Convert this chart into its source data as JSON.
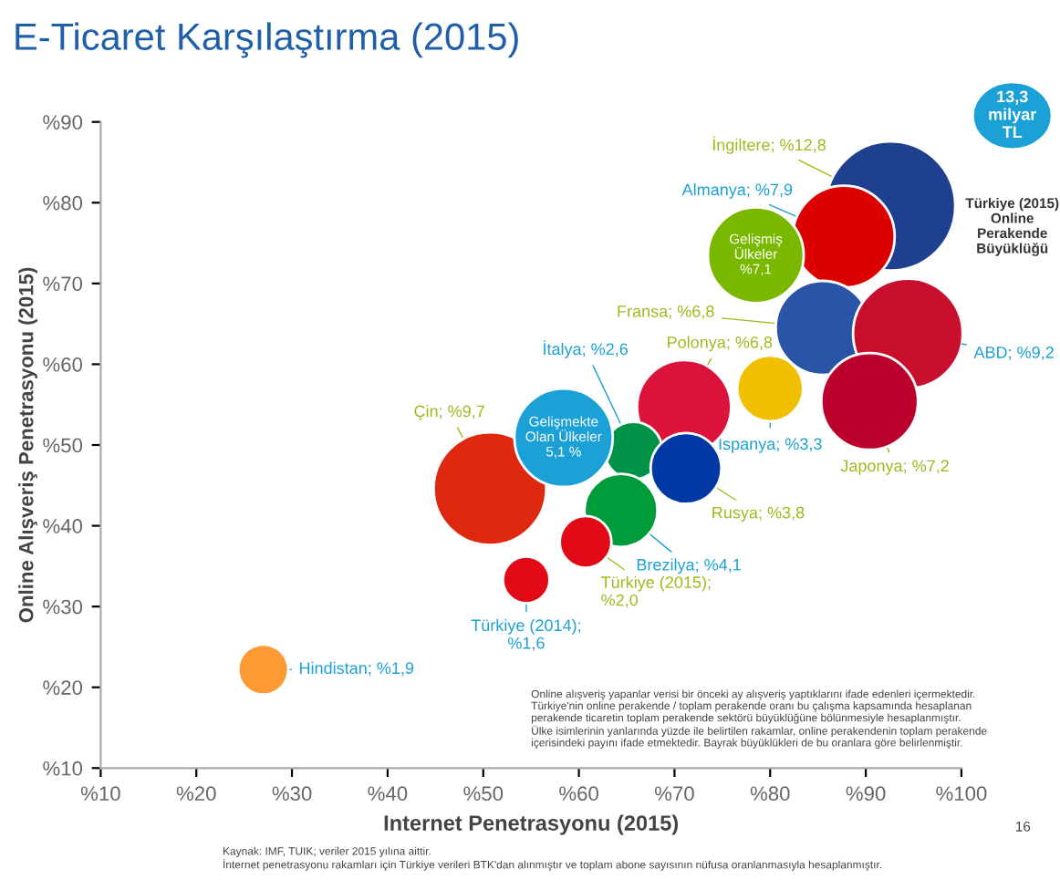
{
  "chart_data": {
    "type": "bubble",
    "title": "E-Ticaret Karşılaştırma (2015)",
    "xlabel": "Internet Penetrasyonu (2015)",
    "ylabel": "Online Alışveriş Penetrasyonu (2015)",
    "xlim": [
      10,
      100
    ],
    "ylim": [
      10,
      90
    ],
    "xticks": [
      {
        "value": 10,
        "label": "%10"
      },
      {
        "value": 20,
        "label": "%20"
      },
      {
        "value": 30,
        "label": "%30"
      },
      {
        "value": 40,
        "label": "%40"
      },
      {
        "value": 50,
        "label": "%50"
      },
      {
        "value": 60,
        "label": "%60"
      },
      {
        "value": 70,
        "label": "%70"
      },
      {
        "value": 80,
        "label": "%80"
      },
      {
        "value": 90,
        "label": "%90"
      },
      {
        "value": 100,
        "label": "%100"
      }
    ],
    "yticks": [
      {
        "value": 10,
        "label": "%10"
      },
      {
        "value": 20,
        "label": "%20"
      },
      {
        "value": 30,
        "label": "%30"
      },
      {
        "value": 40,
        "label": "%40"
      },
      {
        "value": 50,
        "label": "%50"
      },
      {
        "value": 60,
        "label": "%60"
      },
      {
        "value": 70,
        "label": "%70"
      },
      {
        "value": 80,
        "label": "%80"
      },
      {
        "value": 90,
        "label": "%90"
      }
    ],
    "grid": false,
    "legend": false,
    "series": [
      {
        "x": [
          92.6,
          87.7,
          85.5,
          94.4,
          90.4,
          80.0,
          71.0,
          65.7,
          71.2,
          64.4,
          60.7,
          54.5,
          50.7,
          27.0
        ],
        "values": [
          79.6,
          75.8,
          64.5,
          63.8,
          55.4,
          57.0,
          54.7,
          49.3,
          47.1,
          41.9,
          38.0,
          33.3,
          44.6,
          22.2
        ],
        "sizes": [
          1.0,
          0.62,
          0.53,
          0.72,
          0.56,
          0.26,
          0.53,
          0.2,
          0.3,
          0.32,
          0.16,
          0.13,
          0.76,
          0.15
        ],
        "colors": [
          "#1f3f8f",
          "#dd0000",
          "#2a54a5",
          "#c8102e",
          "#bc002d",
          "#f1bf00",
          "#dc143c",
          "#009246",
          "#0039a6",
          "#009c3b",
          "#e30a17",
          "#e30a17",
          "#de2910",
          "#ff9933"
        ]
      },
      {
        "x": [
          78.5,
          58.4
        ],
        "values": [
          73.5,
          50.9
        ],
        "sizes": [
          0.55,
          0.58
        ],
        "colors": [
          "#7ab800",
          "#1ba1d6"
        ]
      }
    ],
    "annotations": [
      {
        "text": "İngiltere; %12,8",
        "x": 92.6,
        "y": 79.6
      },
      {
        "text": "Almanya; %7,9",
        "x": 87.7,
        "y": 75.8
      },
      {
        "text": "Fransa; %6,8",
        "x": 85.5,
        "y": 64.5
      },
      {
        "text": "ABD; %9,2",
        "x": 94.4,
        "y": 63.8
      },
      {
        "text": "Japonya; %7,2",
        "x": 90.4,
        "y": 55.4
      },
      {
        "text": "İspanya; %3,3",
        "x": 80.0,
        "y": 57.0
      },
      {
        "text": "Polonya; %6,8",
        "x": 71.0,
        "y": 54.7
      },
      {
        "text": "İtalya; %2,6",
        "x": 65.7,
        "y": 49.3
      },
      {
        "text": "Rusya; %3,8",
        "x": 71.2,
        "y": 47.1
      },
      {
        "text": "Brezilya; %4,1",
        "x": 64.4,
        "y": 41.9
      },
      {
        "text": "Türkiye (2015);\n%2,0",
        "x": 60.7,
        "y": 38.0
      },
      {
        "text": "Türkiye (2014);\n%1,6",
        "x": 54.5,
        "y": 33.3
      },
      {
        "text": "Çin; %9,7",
        "x": 50.7,
        "y": 44.6
      },
      {
        "text": "Hindistan; %1,9",
        "x": 27.0,
        "y": 22.2
      },
      {
        "text": "Gelişmiş\nÜlkeler\n%7,1",
        "x": 78.5,
        "y": 73.5
      },
      {
        "text": "Gelişmekte\nOlan Ülkeler\n5,1 %",
        "x": 58.4,
        "y": 50.9
      },
      "13,3\nmilyar\nTL",
      "Türkiye (2015)\nOnline\nPerakende\nBüyüklüğü",
      "Online alışveriş yapanlar verisi bir önceki ay alışveriş yaptıklarını ifade edenleri içermektedir.\nTürkiye'nin online perakende / toplam perakende oranı bu çalışma kapsamında hesaplanan\nperakende ticaretin toplam perakende sektörü büyüklüğüne bölünmesiyle hesaplanmıştır.\nÜlke isimlerinin yanlarında yüzde ile belirtilen rakamlar, online perakendenin toplam perakende\niçerisindeki payını ifade etmektedir. Bayrak büyüklükleri de bu oranlara göre belirlenmiştir.",
      "Kaynak: IMF, TUIK; veriler 2015 yılına aittir.\nİnternet penetrasyonu rakamları için Türkiye verileri BTK'dan alınmıştır ve toplam abone sayısının nüfusa oranlanmasıyla hesaplanmıştır.",
      "16"
    ]
  }
}
